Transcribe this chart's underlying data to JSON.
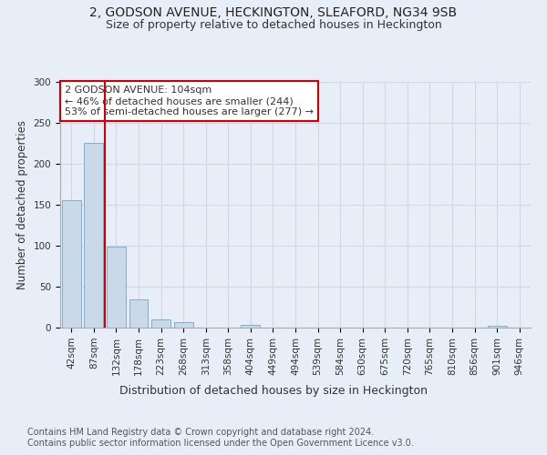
{
  "title1": "2, GODSON AVENUE, HECKINGTON, SLEAFORD, NG34 9SB",
  "title2": "Size of property relative to detached houses in Heckington",
  "xlabel": "Distribution of detached houses by size in Heckington",
  "ylabel": "Number of detached properties",
  "bin_labels": [
    "42sqm",
    "87sqm",
    "132sqm",
    "178sqm",
    "223sqm",
    "268sqm",
    "313sqm",
    "358sqm",
    "404sqm",
    "449sqm",
    "494sqm",
    "539sqm",
    "584sqm",
    "630sqm",
    "675sqm",
    "720sqm",
    "765sqm",
    "810sqm",
    "856sqm",
    "901sqm",
    "946sqm"
  ],
  "bin_values": [
    155,
    226,
    99,
    34,
    10,
    7,
    0,
    0,
    3,
    0,
    0,
    0,
    0,
    0,
    0,
    0,
    0,
    0,
    0,
    2,
    0
  ],
  "bar_color": "#c9d9e8",
  "bar_edge_color": "#7bafd4",
  "annotation_text": "2 GODSON AVENUE: 104sqm\n← 46% of detached houses are smaller (244)\n53% of semi-detached houses are larger (277) →",
  "annotation_box_color": "#ffffff",
  "annotation_box_edge_color": "#cc0000",
  "red_line_color": "#cc0000",
  "ylim": [
    0,
    300
  ],
  "yticks": [
    0,
    50,
    100,
    150,
    200,
    250,
    300
  ],
  "grid_color": "#d0d8e8",
  "background_color": "#e8eef8",
  "footnote1": "Contains HM Land Registry data © Crown copyright and database right 2024.",
  "footnote2": "Contains public sector information licensed under the Open Government Licence v3.0.",
  "title1_fontsize": 10,
  "title2_fontsize": 9,
  "xlabel_fontsize": 9,
  "ylabel_fontsize": 8.5,
  "tick_fontsize": 7.5,
  "annotation_fontsize": 8,
  "footnote_fontsize": 7
}
